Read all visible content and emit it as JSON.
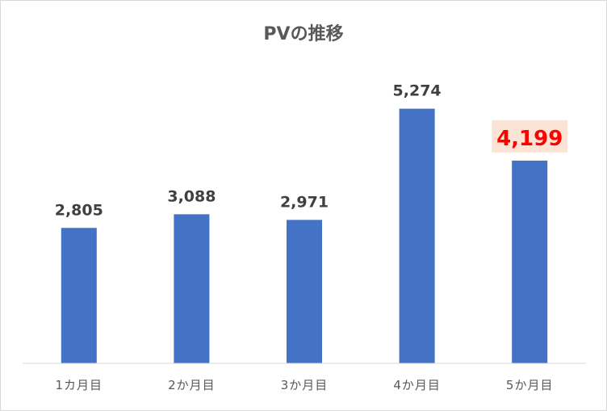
{
  "chart_data": {
    "type": "bar",
    "title": "PVの推移",
    "categories": [
      "1カ月目",
      "2か月目",
      "3か月目",
      "4か月目",
      "5か月目"
    ],
    "values": [
      2805,
      3088,
      2971,
      5274,
      4199
    ],
    "value_labels": [
      "2,805",
      "3,088",
      "2,971",
      "5,274",
      "4,199"
    ],
    "highlight_index": 4,
    "xlabel": "",
    "ylabel": "",
    "ylim": [
      0,
      6000
    ],
    "grid": false,
    "legend": "none",
    "colors": {
      "bar": "#4472c4",
      "label": "#404040",
      "highlight_label": "#ff0000",
      "highlight_box": "#fbe3d6"
    }
  }
}
